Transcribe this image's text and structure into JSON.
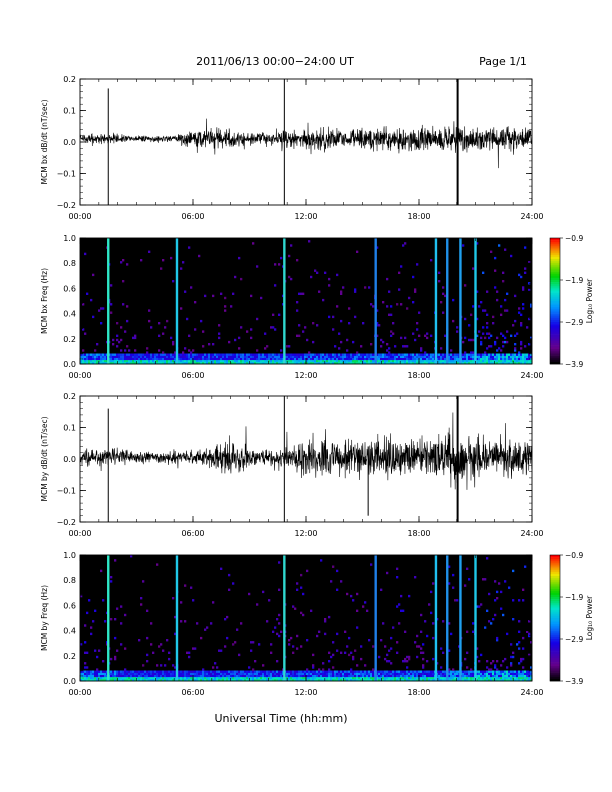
{
  "header": {
    "title": "2011/06/13  00:00−24:00 UT",
    "page": "Page 1/1"
  },
  "xlabel": "Universal Time (hh:mm)",
  "colors": {
    "trace": "#000000",
    "background": "#000000"
  },
  "chart_data": [
    {
      "type": "line",
      "ylabel": "MCM bx dB/dt (nT/sec)",
      "xlim": [
        0,
        24
      ],
      "ylim": [
        -0.2,
        0.2
      ],
      "x_ticks": [
        "00:00",
        "06:00",
        "12:00",
        "18:00",
        "24:00"
      ],
      "y_ticks": [
        "−0.2",
        "−0.1",
        "0.0",
        "0.1",
        "0.2"
      ],
      "baseline": 0.01,
      "amplitude_envelope": [
        {
          "x": 0.0,
          "y": 0.012
        },
        {
          "x": 2.0,
          "y": 0.012
        },
        {
          "x": 3.0,
          "y": 0.008
        },
        {
          "x": 5.0,
          "y": 0.008
        },
        {
          "x": 6.0,
          "y": 0.025
        },
        {
          "x": 7.0,
          "y": 0.03
        },
        {
          "x": 8.0,
          "y": 0.02
        },
        {
          "x": 10.0,
          "y": 0.015
        },
        {
          "x": 11.0,
          "y": 0.02
        },
        {
          "x": 12.0,
          "y": 0.025
        },
        {
          "x": 13.0,
          "y": 0.03
        },
        {
          "x": 14.0,
          "y": 0.02
        },
        {
          "x": 15.0,
          "y": 0.025
        },
        {
          "x": 16.0,
          "y": 0.035
        },
        {
          "x": 17.0,
          "y": 0.03
        },
        {
          "x": 18.0,
          "y": 0.035
        },
        {
          "x": 19.0,
          "y": 0.03
        },
        {
          "x": 20.0,
          "y": 0.04
        },
        {
          "x": 21.0,
          "y": 0.035
        },
        {
          "x": 22.0,
          "y": 0.03
        },
        {
          "x": 23.0,
          "y": 0.035
        },
        {
          "x": 24.0,
          "y": 0.03
        }
      ],
      "spikes": [
        {
          "x": 1.5,
          "ymin": -0.2,
          "ymax": 0.17
        },
        {
          "x": 10.85,
          "ymin": -0.2,
          "ymax": 0.2
        },
        {
          "x": 20.05,
          "ymin": -0.2,
          "ymax": 0.2
        }
      ]
    },
    {
      "type": "heatmap",
      "ylabel": "MCM bx Freq (Hz)",
      "xlim": [
        0,
        24
      ],
      "ylim": [
        0,
        1.0
      ],
      "x_ticks": [
        "00:00",
        "06:00",
        "12:00",
        "18:00",
        "24:00"
      ],
      "y_ticks": [
        "0.0",
        "0.2",
        "0.4",
        "0.6",
        "0.8",
        "1.0"
      ],
      "colorbar": {
        "label": "Log₁₀ Power",
        "ticks": [
          "−0.9",
          "−1.9",
          "−2.9",
          "−3.9"
        ],
        "range": [
          -3.9,
          -0.9
        ]
      },
      "vertical_lines": [
        {
          "x": 1.5,
          "color": "#2ee8c8"
        },
        {
          "x": 5.15,
          "color": "#20c8e8"
        },
        {
          "x": 10.85,
          "color": "#30d8d0"
        },
        {
          "x": 15.7,
          "color": "#2080e8"
        },
        {
          "x": 18.9,
          "color": "#20c0f0"
        },
        {
          "x": 19.5,
          "color": "#2090e8"
        },
        {
          "x": 20.2,
          "color": "#20a0f0"
        },
        {
          "x": 21.0,
          "color": "#20c8e8"
        }
      ]
    },
    {
      "type": "line",
      "ylabel": "MCM by dB/dt (nT/sec)",
      "xlim": [
        0,
        24
      ],
      "ylim": [
        -0.2,
        0.2
      ],
      "x_ticks": [
        "00:00",
        "06:00",
        "12:00",
        "18:00",
        "24:00"
      ],
      "y_ticks": [
        "−0.2",
        "−0.1",
        "0.0",
        "0.1",
        "0.2"
      ],
      "baseline": 0.005,
      "amplitude_envelope": [
        {
          "x": 0.0,
          "y": 0.02
        },
        {
          "x": 1.0,
          "y": 0.025
        },
        {
          "x": 2.0,
          "y": 0.02
        },
        {
          "x": 3.0,
          "y": 0.02
        },
        {
          "x": 4.0,
          "y": 0.015
        },
        {
          "x": 6.0,
          "y": 0.02
        },
        {
          "x": 7.0,
          "y": 0.03
        },
        {
          "x": 8.0,
          "y": 0.05
        },
        {
          "x": 9.0,
          "y": 0.025
        },
        {
          "x": 10.0,
          "y": 0.02
        },
        {
          "x": 11.0,
          "y": 0.035
        },
        {
          "x": 12.0,
          "y": 0.05
        },
        {
          "x": 13.0,
          "y": 0.06
        },
        {
          "x": 14.0,
          "y": 0.04
        },
        {
          "x": 15.0,
          "y": 0.05
        },
        {
          "x": 16.0,
          "y": 0.06
        },
        {
          "x": 17.0,
          "y": 0.055
        },
        {
          "x": 18.0,
          "y": 0.045
        },
        {
          "x": 19.0,
          "y": 0.05
        },
        {
          "x": 20.0,
          "y": 0.07
        },
        {
          "x": 21.0,
          "y": 0.06
        },
        {
          "x": 22.0,
          "y": 0.045
        },
        {
          "x": 23.0,
          "y": 0.05
        },
        {
          "x": 24.0,
          "y": 0.04
        }
      ],
      "spikes": [
        {
          "x": 1.5,
          "ymin": -0.2,
          "ymax": 0.16
        },
        {
          "x": 10.85,
          "ymin": -0.2,
          "ymax": 0.2
        },
        {
          "x": 15.3,
          "ymin": -0.18,
          "ymax": 0.04
        },
        {
          "x": 20.05,
          "ymin": -0.2,
          "ymax": 0.2
        }
      ]
    },
    {
      "type": "heatmap",
      "ylabel": "MCM by Freq (Hz)",
      "xlim": [
        0,
        24
      ],
      "ylim": [
        0,
        1.0
      ],
      "x_ticks": [
        "00:00",
        "06:00",
        "12:00",
        "18:00",
        "24:00"
      ],
      "y_ticks": [
        "0.0",
        "0.2",
        "0.4",
        "0.6",
        "0.8",
        "1.0"
      ],
      "colorbar": {
        "label": "Log₁₀ Power",
        "ticks": [
          "−0.9",
          "−1.9",
          "−2.9",
          "−3.9"
        ],
        "range": [
          -3.9,
          -0.9
        ]
      },
      "vertical_lines": [
        {
          "x": 1.5,
          "color": "#2ee8c8"
        },
        {
          "x": 5.15,
          "color": "#20c8e8"
        },
        {
          "x": 10.85,
          "color": "#30d8d0"
        },
        {
          "x": 15.7,
          "color": "#2080e8"
        },
        {
          "x": 18.9,
          "color": "#20c0f0"
        },
        {
          "x": 19.5,
          "color": "#2090e8"
        },
        {
          "x": 20.2,
          "color": "#20a0f0"
        },
        {
          "x": 21.0,
          "color": "#20c8e8"
        }
      ]
    }
  ]
}
